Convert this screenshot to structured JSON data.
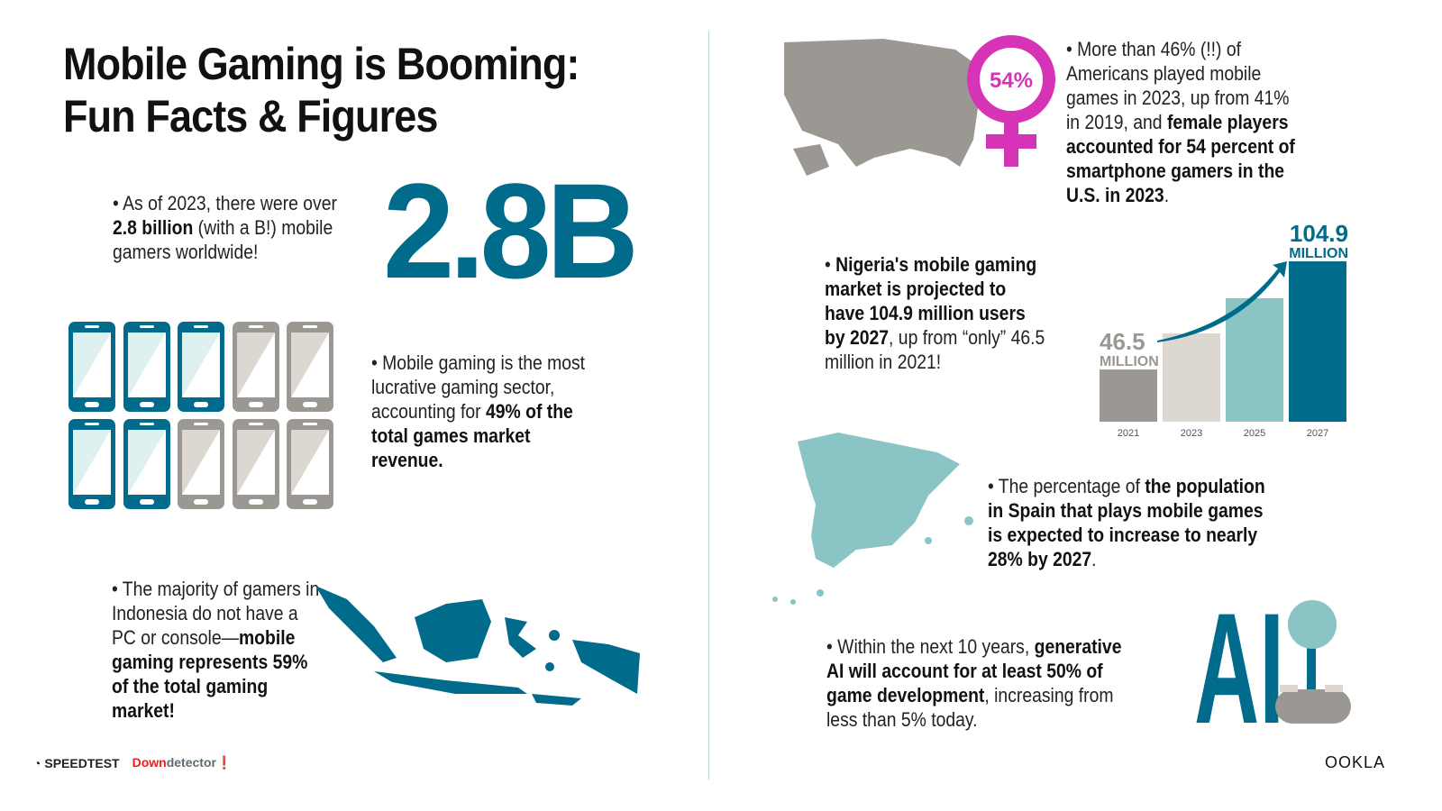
{
  "title": [
    "Mobile Gaming is Booming:",
    "Fun Facts & Figures"
  ],
  "fact_gamers": {
    "pre": "As of 2023, there were over ",
    "bold": "2.8 billion",
    "post": " (with a B!) mobile gamers worldwide!",
    "big_number": "2.8B"
  },
  "fact_revenue": {
    "pre": "Mobile gaming is the most lucrative gaming sector, accounting for ",
    "bold": "49% of the total games market revenue."
  },
  "phones": {
    "total": 10,
    "highlighted_fraction": 0.5
  },
  "fact_indonesia": {
    "pre": "The majority of gamers in Indonesia do not have a PC or console—",
    "bold": "mobile gaming represents 59% of the total gaming market!"
  },
  "fact_us": {
    "pre": "More than 46% (!!) of Americans played mobile games in 2023, up from 41% in 2019, and ",
    "bold": "female players accounted for 54 percent of smartphone gamers in the U.S. in 2023",
    "post": ".",
    "badge": "54%"
  },
  "fact_nigeria": {
    "bold": "Nigeria's mobile gaming market is projected to have 104.9 million users by 2027",
    "post": ", up from “only” 46.5 million in 2021!"
  },
  "chart_data": {
    "type": "bar",
    "categories": [
      "2021",
      "2023",
      "2025",
      "2027"
    ],
    "values": [
      46.5,
      66,
      85,
      104.9
    ],
    "labels": [
      {
        "value": "46.5",
        "unit": "MILLION"
      },
      null,
      null,
      {
        "value": "104.9",
        "unit": "MILLION"
      }
    ],
    "colors": [
      "#9b9893",
      "#dcd8d1",
      "#8bc4c5",
      "#006b8a"
    ],
    "annotation": "arrow from 2021 to 2027",
    "grid": false
  },
  "fact_spain": {
    "pre": "The percentage of ",
    "bold": "the population in Spain that plays mobile games is expected to increase to nearly 28% by 2027",
    "post": "."
  },
  "fact_ai": {
    "pre": "Within the next 10 years, ",
    "bold": "generative AI will account for at least 50% of game development",
    "post": ", increasing from less than 5% today.",
    "logo_text": "AI"
  },
  "footer": {
    "speedtest": "SPEEDTEST",
    "downdetector_red": "Down",
    "downdetector_gray": "detector",
    "ookla": "OOKLA"
  },
  "colors": {
    "teal": "#006b8a",
    "light_teal": "#8bc4c5",
    "gray": "#9b9893",
    "magenta": "#d633b7",
    "red": "#e8201b"
  }
}
